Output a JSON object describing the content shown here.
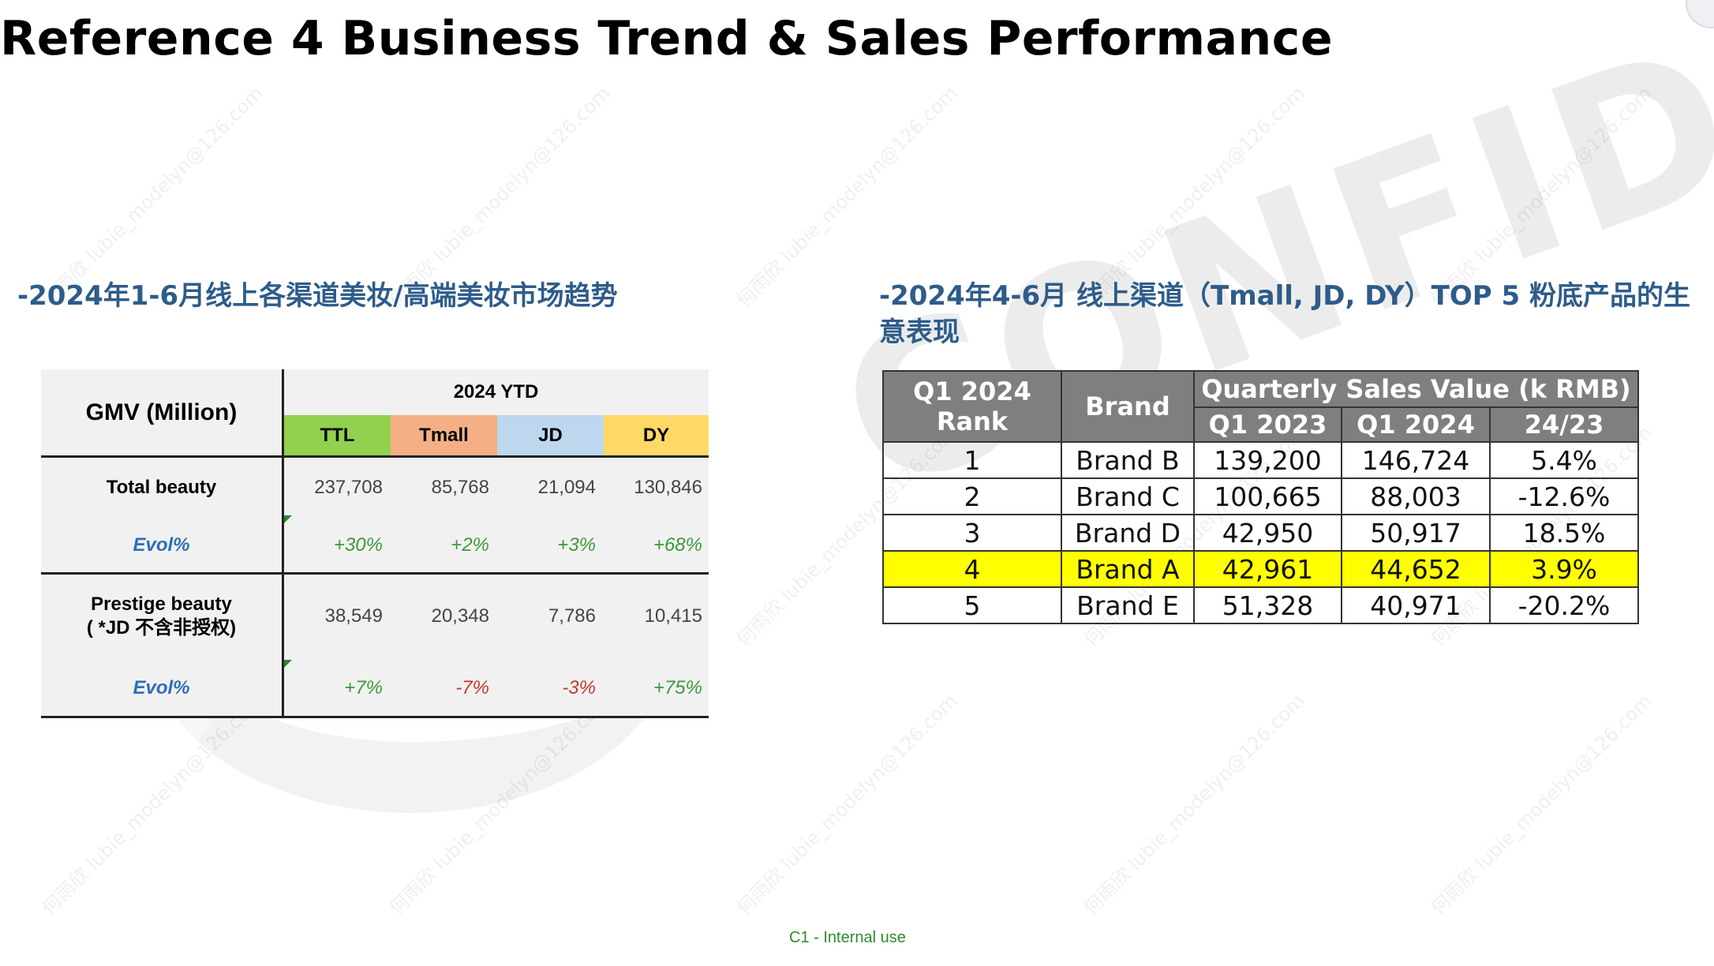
{
  "title": "Reference 4  Business Trend & Sales Performance",
  "left_section_title": "-2024年1-6月线上各渠道美妆/高端美妆市场趋势",
  "right_section_title": "-2024年4-6月 线上渠道（Tmall, JD, DY）TOP 5 粉底产品的生意表现",
  "watermark": "CONFIDENTIAL",
  "watermark_small": "何雨欣 lubie_modelyn@126.com",
  "footer": "C1 - Internal use",
  "gmv_table": {
    "header_label": "GMV (Million)",
    "period": "2024 YTD",
    "channels": [
      "TTL",
      "Tmall",
      "JD",
      "DY"
    ],
    "channel_colors": [
      "#92d050",
      "#f4b084",
      "#bdd7ee",
      "#ffd966"
    ],
    "rows": [
      {
        "label": "Total beauty",
        "values": [
          "237,708",
          "85,768",
          "21,094",
          "130,846"
        ],
        "evol_label": "Evol%",
        "evol": [
          "+30%",
          "+2%",
          "+3%",
          "+68%"
        ],
        "evol_colors": [
          "#3a9a3a",
          "#3a9a3a",
          "#3a9a3a",
          "#3a9a3a"
        ]
      },
      {
        "label_line1": "Prestige beauty",
        "label_line2": "( *JD 不含非授权)",
        "values": [
          "38,549",
          "20,348",
          "7,786",
          "10,415"
        ],
        "evol_label": "Evol%",
        "evol": [
          "+7%",
          "-7%",
          "-3%",
          "+75%"
        ],
        "evol_colors": [
          "#3a9a3a",
          "#c0392b",
          "#c0392b",
          "#3a9a3a"
        ]
      }
    ]
  },
  "rank_table": {
    "headers": {
      "rank": "Q1 2024 Rank",
      "brand": "Brand",
      "group": "Quarterly Sales Value (k RMB)",
      "q1_2023": "Q1 2023",
      "q1_2024": "Q1 2024",
      "ratio": "24/23"
    },
    "highlight_color": "#ffff00",
    "rows": [
      {
        "rank": "1",
        "brand": "Brand B",
        "q1_2023": "139,200",
        "q1_2024": "146,724",
        "ratio": "5.4%"
      },
      {
        "rank": "2",
        "brand": "Brand C",
        "q1_2023": "100,665",
        "q1_2024": "88,003",
        "ratio": "-12.6%"
      },
      {
        "rank": "3",
        "brand": "Brand D",
        "q1_2023": "42,950",
        "q1_2024": "50,917",
        "ratio": "18.5%"
      },
      {
        "rank": "4",
        "brand": "Brand A",
        "q1_2023": "42,961",
        "q1_2024": "44,652",
        "ratio": "3.9%",
        "highlighted": true
      },
      {
        "rank": "5",
        "brand": "Brand E",
        "q1_2023": "51,328",
        "q1_2024": "40,971",
        "ratio": "-20.2%"
      }
    ]
  }
}
